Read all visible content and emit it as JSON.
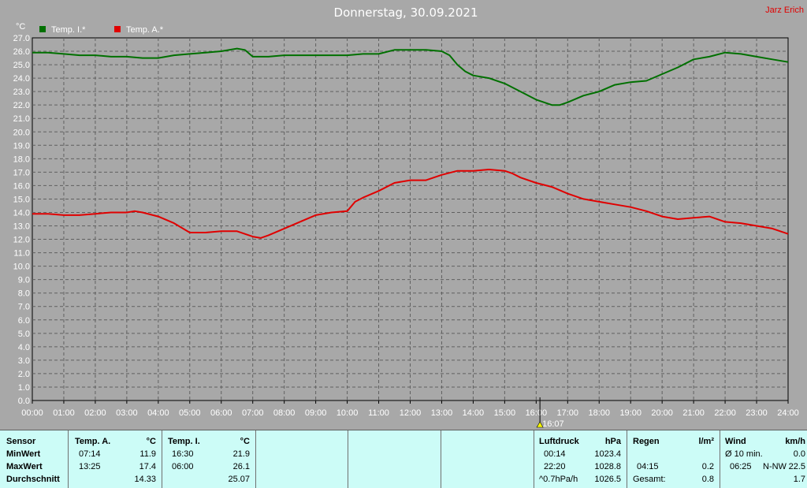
{
  "header": {
    "title": "Donnerstag, 30.09.2021",
    "author": "Jarz Erich",
    "unit": "°C"
  },
  "chart_data": {
    "type": "line",
    "title": "Donnerstag, 30.09.2021",
    "ylabel": "°C",
    "ylim": [
      0,
      27
    ],
    "xlim": [
      "00:00",
      "24:00"
    ],
    "grid": true,
    "legend_position": "top-left",
    "x_ticks": [
      "00:00",
      "01:00",
      "02:00",
      "03:00",
      "04:00",
      "05:00",
      "06:00",
      "07:00",
      "08:00",
      "09:00",
      "10:00",
      "11:00",
      "12:00",
      "13:00",
      "14:00",
      "15:00",
      "16:00",
      "17:00",
      "18:00",
      "19:00",
      "20:00",
      "21:00",
      "22:00",
      "23:00",
      "24:00"
    ],
    "y_ticks": [
      "0.0",
      "1.0",
      "2.0",
      "3.0",
      "4.0",
      "5.0",
      "6.0",
      "7.0",
      "8.0",
      "9.0",
      "10.0",
      "11.0",
      "12.0",
      "13.0",
      "14.0",
      "15.0",
      "16.0",
      "17.0",
      "18.0",
      "19.0",
      "20.0",
      "21.0",
      "22.0",
      "23.0",
      "24.0",
      "25.0",
      "26.0",
      "27.0"
    ],
    "marker_label": "16:07",
    "marker_hour": 16.12,
    "series": [
      {
        "name": "Temp. I.*",
        "color": "#007000",
        "x": [
          0,
          0.5,
          1,
          1.5,
          2,
          2.5,
          3,
          3.5,
          4,
          4.5,
          5,
          5.5,
          6,
          6.5,
          6.75,
          7,
          7.25,
          7.5,
          8,
          8.5,
          9,
          9.5,
          10,
          10.5,
          11,
          11.5,
          12,
          12.5,
          13,
          13.25,
          13.5,
          13.75,
          14,
          14.5,
          15,
          15.5,
          16,
          16.5,
          16.75,
          17,
          17.5,
          18,
          18.5,
          19,
          19.5,
          20,
          20.5,
          21,
          21.5,
          22,
          22.5,
          23,
          23.5,
          24
        ],
        "values": [
          25.9,
          25.9,
          25.8,
          25.7,
          25.7,
          25.6,
          25.6,
          25.5,
          25.5,
          25.7,
          25.8,
          25.9,
          26.0,
          26.2,
          26.1,
          25.6,
          25.6,
          25.6,
          25.7,
          25.7,
          25.7,
          25.7,
          25.7,
          25.8,
          25.8,
          26.1,
          26.1,
          26.1,
          26.0,
          25.7,
          25.0,
          24.5,
          24.2,
          24.0,
          23.6,
          23.0,
          22.4,
          22.0,
          22.0,
          22.2,
          22.7,
          23.0,
          23.5,
          23.7,
          23.8,
          24.3,
          24.8,
          25.4,
          25.6,
          25.9,
          25.8,
          25.6,
          25.4,
          25.2
        ]
      },
      {
        "name": "Temp. A.*",
        "color": "#e00000",
        "x": [
          0,
          0.5,
          1,
          1.5,
          2,
          2.5,
          3,
          3.25,
          3.5,
          4,
          4.5,
          5,
          5.5,
          6,
          6.5,
          7,
          7.25,
          7.5,
          8,
          8.5,
          9,
          9.5,
          10,
          10.25,
          10.5,
          11,
          11.5,
          12,
          12.5,
          13,
          13.5,
          14,
          14.5,
          15,
          15.25,
          15.5,
          16,
          16.5,
          17,
          17.5,
          18,
          18.5,
          19,
          19.5,
          20,
          20.5,
          21,
          21.5,
          22,
          22.5,
          23,
          23.5,
          24
        ],
        "values": [
          13.9,
          13.9,
          13.8,
          13.8,
          13.9,
          14.0,
          14.0,
          14.1,
          14.0,
          13.7,
          13.2,
          12.5,
          12.5,
          12.6,
          12.6,
          12.2,
          12.1,
          12.3,
          12.8,
          13.3,
          13.8,
          14.0,
          14.1,
          14.8,
          15.1,
          15.6,
          16.2,
          16.4,
          16.4,
          16.8,
          17.1,
          17.1,
          17.2,
          17.1,
          16.9,
          16.6,
          16.2,
          15.9,
          15.4,
          15.0,
          14.8,
          14.6,
          14.4,
          14.1,
          13.7,
          13.5,
          13.6,
          13.7,
          13.3,
          13.2,
          13.0,
          12.8,
          12.4
        ]
      }
    ]
  },
  "table": {
    "sensor": {
      "header": "Sensor",
      "rows": [
        "MinWert",
        "MaxWert",
        "Durchschnitt"
      ]
    },
    "temp_a": {
      "header": "Temp. A.",
      "unit": "°C",
      "min_time": "07:14",
      "min_val": "11.9",
      "max_time": "13:25",
      "max_val": "17.4",
      "avg": "14.33"
    },
    "temp_i": {
      "header": "Temp. I.",
      "unit": "°C",
      "min_time": "16:30",
      "min_val": "21.9",
      "max_time": "06:00",
      "max_val": "26.1",
      "avg": "25.07"
    },
    "pressure": {
      "header": "Luftdruck",
      "unit": "hPa",
      "min_time": "00:14",
      "min_val": "1023.4",
      "max_time": "22:20",
      "max_val": "1028.8",
      "trend_label": "^0.7hPa/h",
      "avg": "1026.5"
    },
    "rain": {
      "header": "Regen",
      "unit": "l/m²",
      "time": "04:15",
      "val": "0.2",
      "total_label": "Gesamt:",
      "total": "0.8"
    },
    "wind": {
      "header": "Wind",
      "unit": "km/h",
      "avg_label": "Ø 10 min.",
      "avg": "0.0",
      "gust_time": "06:25",
      "gust_dir": "N-NW",
      "gust_val": "22.5",
      "mean": "1.7"
    }
  }
}
